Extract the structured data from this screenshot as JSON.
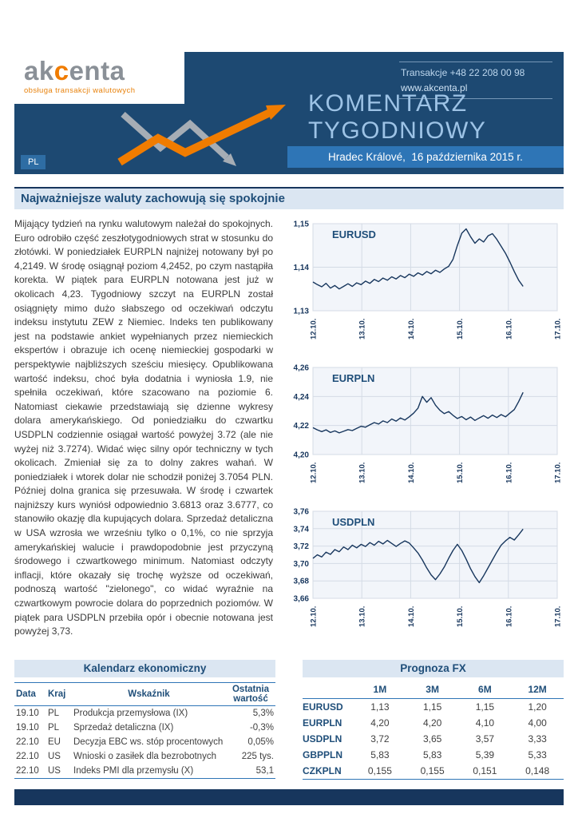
{
  "header": {
    "logo": {
      "part1": "ak",
      "accent": "c",
      "part2": "enta",
      "tagline": "obsługa transakcji walutowych"
    },
    "contact": {
      "phone": "Transakcje +48 22 208 00 98",
      "website": "www.akcenta.pl"
    },
    "title_line1": "KOMENTARZ",
    "title_line2": "TYGODNIOWY",
    "dateline": "Hradec Králové,  16 października 2015 r.",
    "lang_badge": "PL"
  },
  "headline": "Najważniejsze waluty zachowują się spokojnie",
  "article": {
    "body": "Mijający tydzień na rynku walutowym należał do spokojnych. Euro odrobiło część zeszłotygodniowych strat w stosunku do złotówki. W poniedziałek EURPLN najniżej notowany był po 4,2149. W środę osiągnął poziom 4,2452, po czym nastąpiła korekta. W piątek para EURPLN notowana jest już w okolicach 4,23. Tygodniowy szczyt na EURPLN został osiągnięty mimo dużo słabszego od oczekiwań odczytu indeksu instytutu ZEW z Niemiec. Indeks ten publikowany jest na podstawie ankiet wypełnianych przez niemieckich ekspertów i obrazuje ich ocenę niemieckiej gospodarki w perspektywie najbliższych sześciu miesięcy. Opublikowana wartość indeksu, choć była dodatnia i wyniosła 1.9, nie spełniła oczekiwań, które szacowano na poziomie 6. Natomiast ciekawie przedstawiają się dzienne wykresy dolara amerykańskiego. Od poniedziałku do czwartku USDPLN codziennie osiągał wartość powyżej 3.72 (ale nie wyżej niż 3.7274). Widać więc silny opór techniczny w tych okolicach. Zmieniał się za to dolny zakres wahań. W poniedziałek i wtorek dolar nie schodził poniżej 3.7054 PLN. Później dolna granica się przesuwała. W środę i czwartek najniższy kurs wyniósł odpowiednio 3.6813 oraz 3.6777, co stanowiło okazję dla kupujących dolara. Sprzedaż detaliczna w USA wzrosła we wrześniu tylko o 0,1%, co nie sprzyja amerykańskiej walucie i prawdopodobnie jest przyczyną środowego i czwartkowego minimum. Natomiast odczyty inflacji, które okazały się trochę wyższe od oczekiwań, podnoszą wartość \"zielonego\", co widać wyraźnie na czwartkowym powrocie dolara do poprzednich poziomów. W piątek para USDPLN przebiła opór i obecnie notowana jest powyżej 3,73."
  },
  "chart_data": [
    {
      "type": "line",
      "title": "EURUSD",
      "x_ticks": [
        "12.10.",
        "13.10.",
        "14.10.",
        "15.10.",
        "16.10.",
        "17.10."
      ],
      "ylim": [
        1.13,
        1.15
      ],
      "y_ticks": [
        1.13,
        1.14,
        1.15
      ],
      "y_tick_labels": [
        "1,13",
        "1,14",
        "1,15"
      ],
      "values": [
        1.1366,
        1.136,
        1.1355,
        1.1363,
        1.1352,
        1.1358,
        1.135,
        1.1356,
        1.1362,
        1.1356,
        1.1364,
        1.136,
        1.1368,
        1.1363,
        1.1372,
        1.1367,
        1.1375,
        1.137,
        1.1378,
        1.1373,
        1.1381,
        1.1376,
        1.1384,
        1.1379,
        1.1387,
        1.1382,
        1.139,
        1.1385,
        1.1393,
        1.1388,
        1.1396,
        1.1402,
        1.1418,
        1.145,
        1.1478,
        1.1488,
        1.147,
        1.1455,
        1.1465,
        1.1458,
        1.1472,
        1.1477,
        1.1464,
        1.1448,
        1.1432,
        1.1412,
        1.139,
        1.137,
        1.1356
      ]
    },
    {
      "type": "line",
      "title": "EURPLN",
      "x_ticks": [
        "12.10.",
        "13.10.",
        "14.10.",
        "15.10.",
        "16.10.",
        "17.10."
      ],
      "ylim": [
        4.2,
        4.26
      ],
      "y_ticks": [
        4.2,
        4.22,
        4.24,
        4.26
      ],
      "y_tick_labels": [
        "4,20",
        "4,22",
        "4,24",
        "4,26"
      ],
      "values": [
        4.2185,
        4.217,
        4.2158,
        4.217,
        4.2152,
        4.2163,
        4.2149,
        4.216,
        4.2172,
        4.2165,
        4.218,
        4.2195,
        4.2188,
        4.2205,
        4.222,
        4.221,
        4.2232,
        4.222,
        4.2245,
        4.223,
        4.2252,
        4.2238,
        4.226,
        4.2285,
        4.232,
        4.24,
        4.236,
        4.2392,
        4.234,
        4.2305,
        4.2282,
        4.2296,
        4.227,
        4.2248,
        4.2262,
        4.224,
        4.2258,
        4.2235,
        4.2252,
        4.2268,
        4.225,
        4.2272,
        4.2255,
        4.2275,
        4.226,
        4.2285,
        4.231,
        4.2365,
        4.2428
      ]
    },
    {
      "type": "line",
      "title": "USDPLN",
      "x_ticks": [
        "12.10.",
        "13.10.",
        "14.10.",
        "15.10.",
        "16.10.",
        "17.10."
      ],
      "ylim": [
        3.66,
        3.76
      ],
      "y_ticks": [
        3.66,
        3.68,
        3.7,
        3.72,
        3.74,
        3.76
      ],
      "y_tick_labels": [
        "3,66",
        "3,68",
        "3,70",
        "3,72",
        "3,74",
        "3,76"
      ],
      "values": [
        3.706,
        3.71,
        3.7075,
        3.713,
        3.7105,
        3.716,
        3.7135,
        3.719,
        3.716,
        3.721,
        3.718,
        3.722,
        3.7195,
        3.724,
        3.721,
        3.7255,
        3.7225,
        3.7265,
        3.723,
        3.7195,
        3.723,
        3.726,
        3.7235,
        3.718,
        3.712,
        3.704,
        3.695,
        3.687,
        3.6815,
        3.688,
        3.696,
        3.706,
        3.715,
        3.722,
        3.715,
        3.705,
        3.694,
        3.685,
        3.678,
        3.686,
        3.695,
        3.704,
        3.713,
        3.721,
        3.726,
        3.73,
        3.727,
        3.733,
        3.7395
      ]
    }
  ],
  "calendar": {
    "title": "Kalendarz ekonomiczny",
    "columns": [
      "Data",
      "Kraj",
      "Wskaźnik",
      "Ostatnia wartość"
    ],
    "rows": [
      [
        "19.10",
        "PL",
        "Produkcja przemysłowa (IX)",
        "5,3%"
      ],
      [
        "19.10",
        "PL",
        "Sprzedaż detaliczna (IX)",
        "-0,3%"
      ],
      [
        "22.10",
        "EU",
        "Decyzja EBC ws. stóp procentowych",
        "0,05%"
      ],
      [
        "22.10",
        "US",
        "Wnioski o zasiłek dla bezrobotnych",
        "225 tys."
      ],
      [
        "22.10",
        "US",
        "Indeks PMI dla przemysłu (X)",
        "53,1"
      ]
    ]
  },
  "forecast": {
    "title": "Prognoza FX",
    "columns": [
      "1M",
      "3M",
      "6M",
      "12M"
    ],
    "rows": [
      [
        "EURUSD",
        "1,13",
        "1,15",
        "1,15",
        "1,20"
      ],
      [
        "EURPLN",
        "4,20",
        "4,20",
        "4,10",
        "4,00"
      ],
      [
        "USDPLN",
        "3,72",
        "3,65",
        "3,57",
        "3,33"
      ],
      [
        "GBPPLN",
        "5,83",
        "5,83",
        "5,39",
        "5,33"
      ],
      [
        "CZKPLN",
        "0,155",
        "0,155",
        "0,151",
        "0,148"
      ]
    ]
  },
  "colors": {
    "navy": "#17365d",
    "header_blue": "#1d4972",
    "medium_blue": "#2e75b6",
    "light_blue_strip": "#dbe6f2",
    "title_light_blue": "#9dc3e6",
    "accent_orange": "#f07c00",
    "chart_line": "#17365d"
  }
}
